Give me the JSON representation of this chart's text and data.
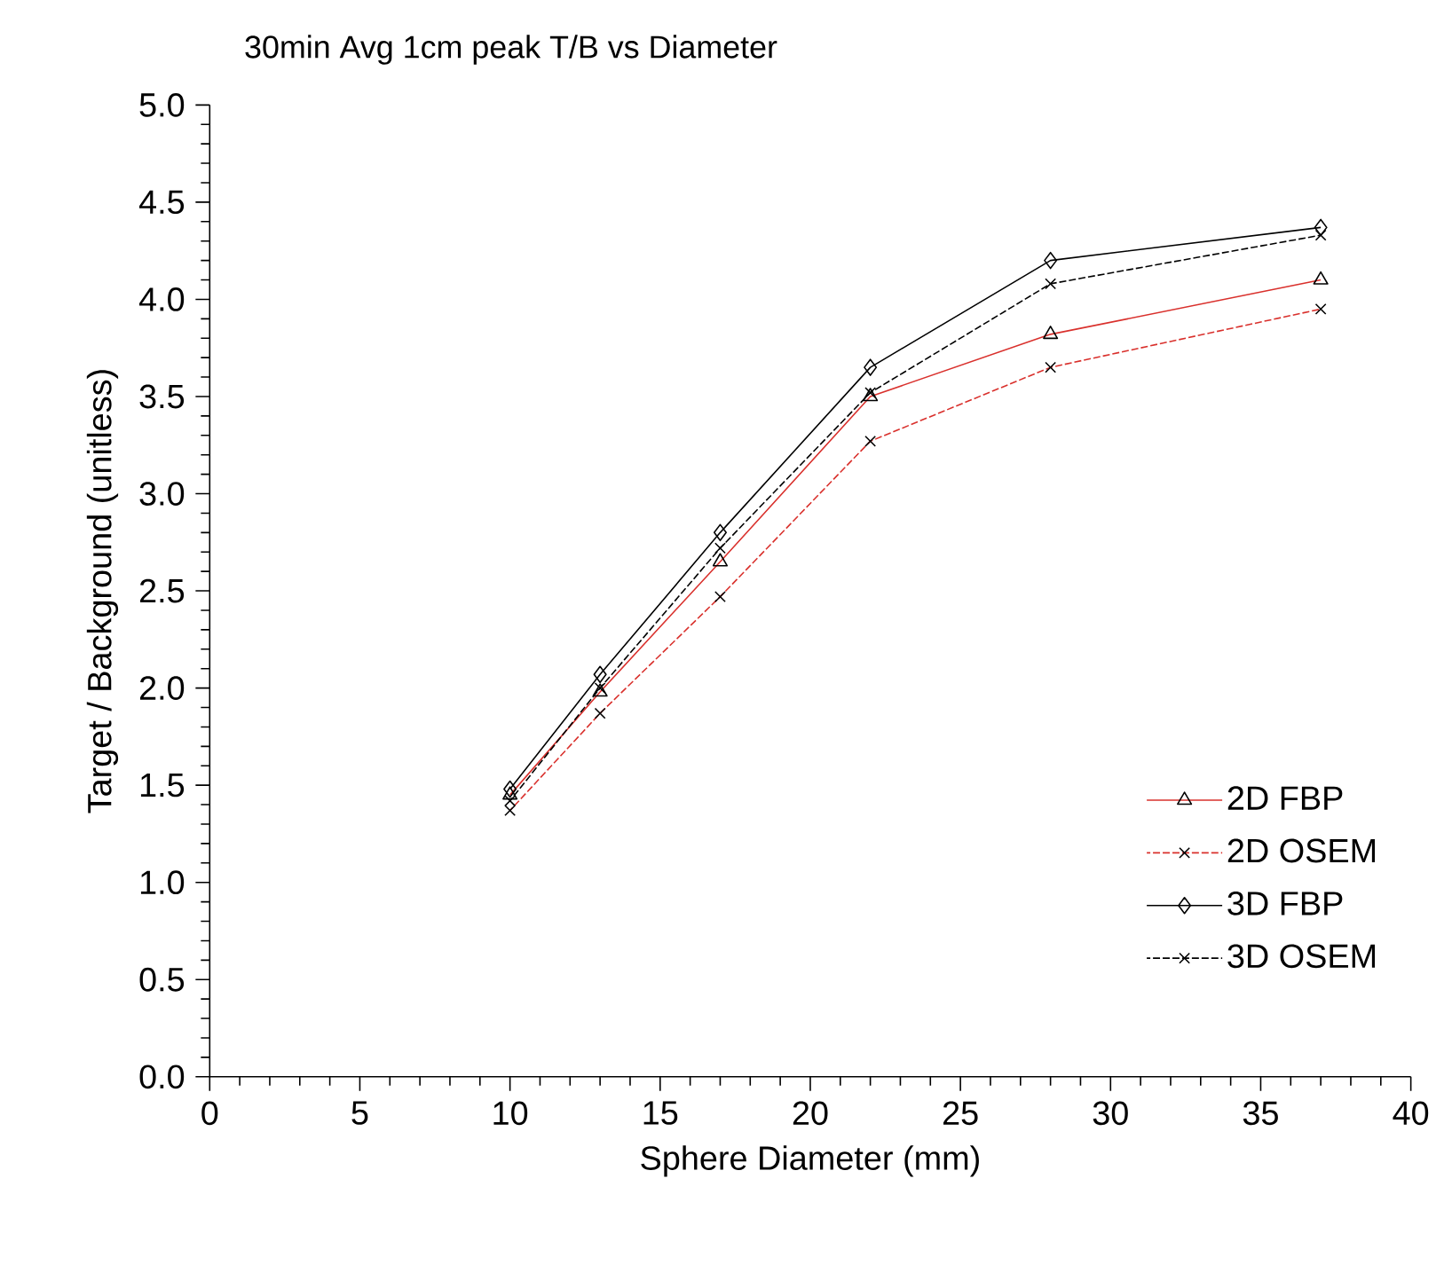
{
  "chart_data": {
    "type": "line",
    "title": "30min Avg 1cm peak T/B vs Diameter",
    "xlabel": "Sphere Diameter (mm)",
    "ylabel": "Target / Background (unitless)",
    "x": [
      10,
      13,
      17,
      22,
      28,
      37
    ],
    "series": [
      {
        "name": "2D FBP",
        "color": "#d9302c",
        "values": [
          1.45,
          1.98,
          2.65,
          3.5,
          3.82,
          4.1
        ],
        "marker": "triangle",
        "line_style": "solid"
      },
      {
        "name": "2D OSEM",
        "color": "#d9302c",
        "values": [
          1.37,
          1.87,
          2.47,
          3.27,
          3.65,
          3.95
        ],
        "marker": "cross",
        "line_style": "dashed"
      },
      {
        "name": "3D FBP",
        "color": "#000000",
        "values": [
          1.48,
          2.07,
          2.8,
          3.65,
          4.2,
          4.37
        ],
        "marker": "diamond",
        "line_style": "solid"
      },
      {
        "name": "3D OSEM",
        "color": "#000000",
        "values": [
          1.42,
          2.0,
          2.72,
          3.52,
          4.08,
          4.33
        ],
        "marker": "cross",
        "line_style": "dashed"
      }
    ],
    "xlim": [
      0,
      40
    ],
    "ylim": [
      0,
      5
    ],
    "xticks": [
      0,
      5,
      10,
      15,
      20,
      25,
      30,
      35,
      40
    ],
    "yticks": [
      {
        "value": 0,
        "label": "0.0"
      },
      {
        "value": 0.5,
        "label": "0.5"
      },
      {
        "value": 1,
        "label": "1.0"
      },
      {
        "value": 1.5,
        "label": "1.5"
      },
      {
        "value": 2,
        "label": "2.0"
      },
      {
        "value": 2.5,
        "label": "2.5"
      },
      {
        "value": 3,
        "label": "3.0"
      },
      {
        "value": 3.5,
        "label": "3.5"
      },
      {
        "value": 4,
        "label": "4.0"
      },
      {
        "value": 4.5,
        "label": "4.5"
      },
      {
        "value": 5,
        "label": "5.0"
      }
    ],
    "grid": false,
    "legend": "bottom right"
  }
}
